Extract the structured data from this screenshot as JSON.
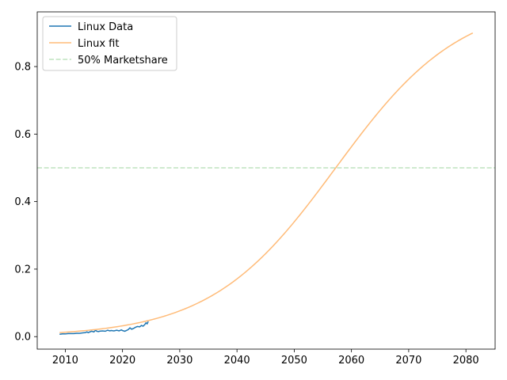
{
  "chart_data": {
    "type": "line",
    "title": "",
    "xlabel": "",
    "ylabel": "",
    "xlim": [
      2005.1,
      2085.1
    ],
    "ylim": [
      -0.037,
      0.962
    ],
    "xticks": [
      2010,
      2020,
      2030,
      2040,
      2050,
      2060,
      2070,
      2080
    ],
    "yticks": [
      0.0,
      0.2,
      0.4,
      0.6,
      0.8
    ],
    "ytick_labels": [
      "0.0",
      "0.2",
      "0.4",
      "0.6",
      "0.8"
    ],
    "grid": false,
    "legend_position": "upper left",
    "series": [
      {
        "name": "Linux Data",
        "color": "#1f77b4",
        "style": "solid",
        "x": [
          2009.0,
          2009.5,
          2010.0,
          2010.5,
          2011.0,
          2011.5,
          2012.0,
          2012.5,
          2013.0,
          2013.5,
          2013.8,
          2014.0,
          2014.3,
          2014.6,
          2015.0,
          2015.3,
          2015.5,
          2015.8,
          2016.0,
          2016.5,
          2017.0,
          2017.4,
          2017.8,
          2018.0,
          2018.5,
          2019.0,
          2019.4,
          2019.8,
          2020.0,
          2020.4,
          2020.8,
          2021.0,
          2021.3,
          2021.6,
          2022.0,
          2022.3,
          2022.6,
          2023.0,
          2023.3,
          2023.6,
          2023.9,
          2024.1,
          2024.3,
          2024.5
        ],
        "y": [
          0.007,
          0.008,
          0.008,
          0.009,
          0.009,
          0.009,
          0.01,
          0.01,
          0.011,
          0.012,
          0.014,
          0.012,
          0.014,
          0.016,
          0.014,
          0.019,
          0.016,
          0.015,
          0.016,
          0.017,
          0.016,
          0.019,
          0.017,
          0.018,
          0.017,
          0.019,
          0.017,
          0.02,
          0.018,
          0.016,
          0.019,
          0.021,
          0.026,
          0.022,
          0.025,
          0.028,
          0.03,
          0.029,
          0.033,
          0.031,
          0.036,
          0.041,
          0.038,
          0.045
        ]
      },
      {
        "name": "Linux fit",
        "color": "#ffbb78",
        "style": "solid",
        "model": "logistic",
        "params": {
          "k": 0.0915,
          "x0": 2057.25
        },
        "x_range": [
          2009.0,
          2081.2
        ]
      },
      {
        "name": "50% Marketshare",
        "color": "#2ca02c",
        "style": "dashed",
        "y_constant": 0.5
      }
    ]
  }
}
